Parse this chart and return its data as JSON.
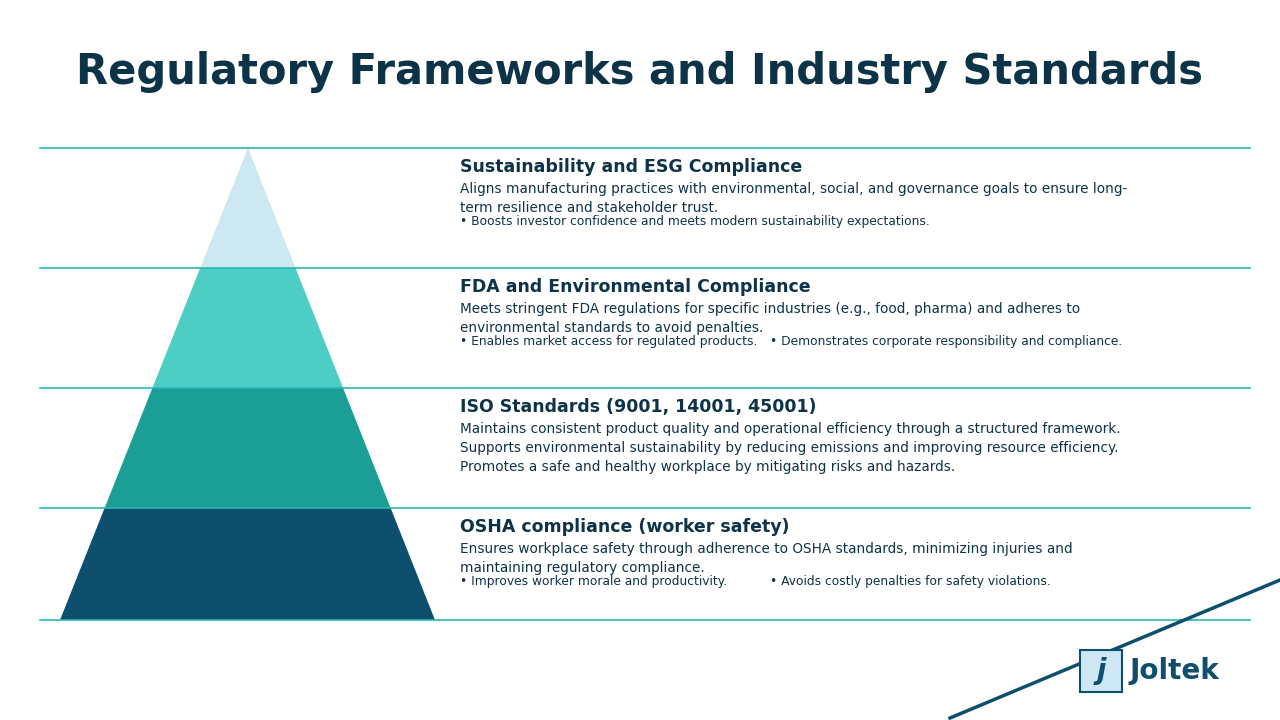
{
  "title": "Regulatory Frameworks and Industry Standards",
  "title_color": "#0d3349",
  "title_fontsize": 30,
  "background_color": "#ffffff",
  "pyramid_colors": [
    "#cce8f0",
    "#4ecdc4",
    "#1a9e96",
    "#0d4f6c"
  ],
  "divider_color": "#26b8b8",
  "text_color": "#0d3349",
  "joltek_line_color": "#0d4f6c",
  "sections": [
    {
      "title": "Sustainability and ESG Compliance",
      "body": "Aligns manufacturing practices with environmental, social, and governance goals to ensure long-\nterm resilience and stakeholder trust.",
      "bullets": [
        "Boosts investor confidence and meets modern sustainability expectations."
      ],
      "bullets_cols": 1
    },
    {
      "title": "FDA and Environmental Compliance",
      "body": "Meets stringent FDA regulations for specific industries (e.g., food, pharma) and adheres to\nenvironmental standards to avoid penalties.",
      "bullets": [
        "Enables market access for regulated products.",
        "Demonstrates corporate responsibility and compliance."
      ],
      "bullets_cols": 2
    },
    {
      "title": "ISO Standards (9001, 14001, 45001)",
      "body": "Maintains consistent product quality and operational efficiency through a structured framework.\nSupports environmental sustainability by reducing emissions and improving resource efficiency.\nPromotes a safe and healthy workplace by mitigating risks and hazards.",
      "bullets": [],
      "bullets_cols": 1
    },
    {
      "title": "OSHA compliance (worker safety)",
      "body": "Ensures workplace safety through adherence to OSHA standards, minimizing injuries and\nmaintaining regulatory compliance.",
      "bullets": [
        "Improves worker morale and productivity.",
        "Avoids costly penalties for safety violations."
      ],
      "bullets_cols": 2
    }
  ]
}
